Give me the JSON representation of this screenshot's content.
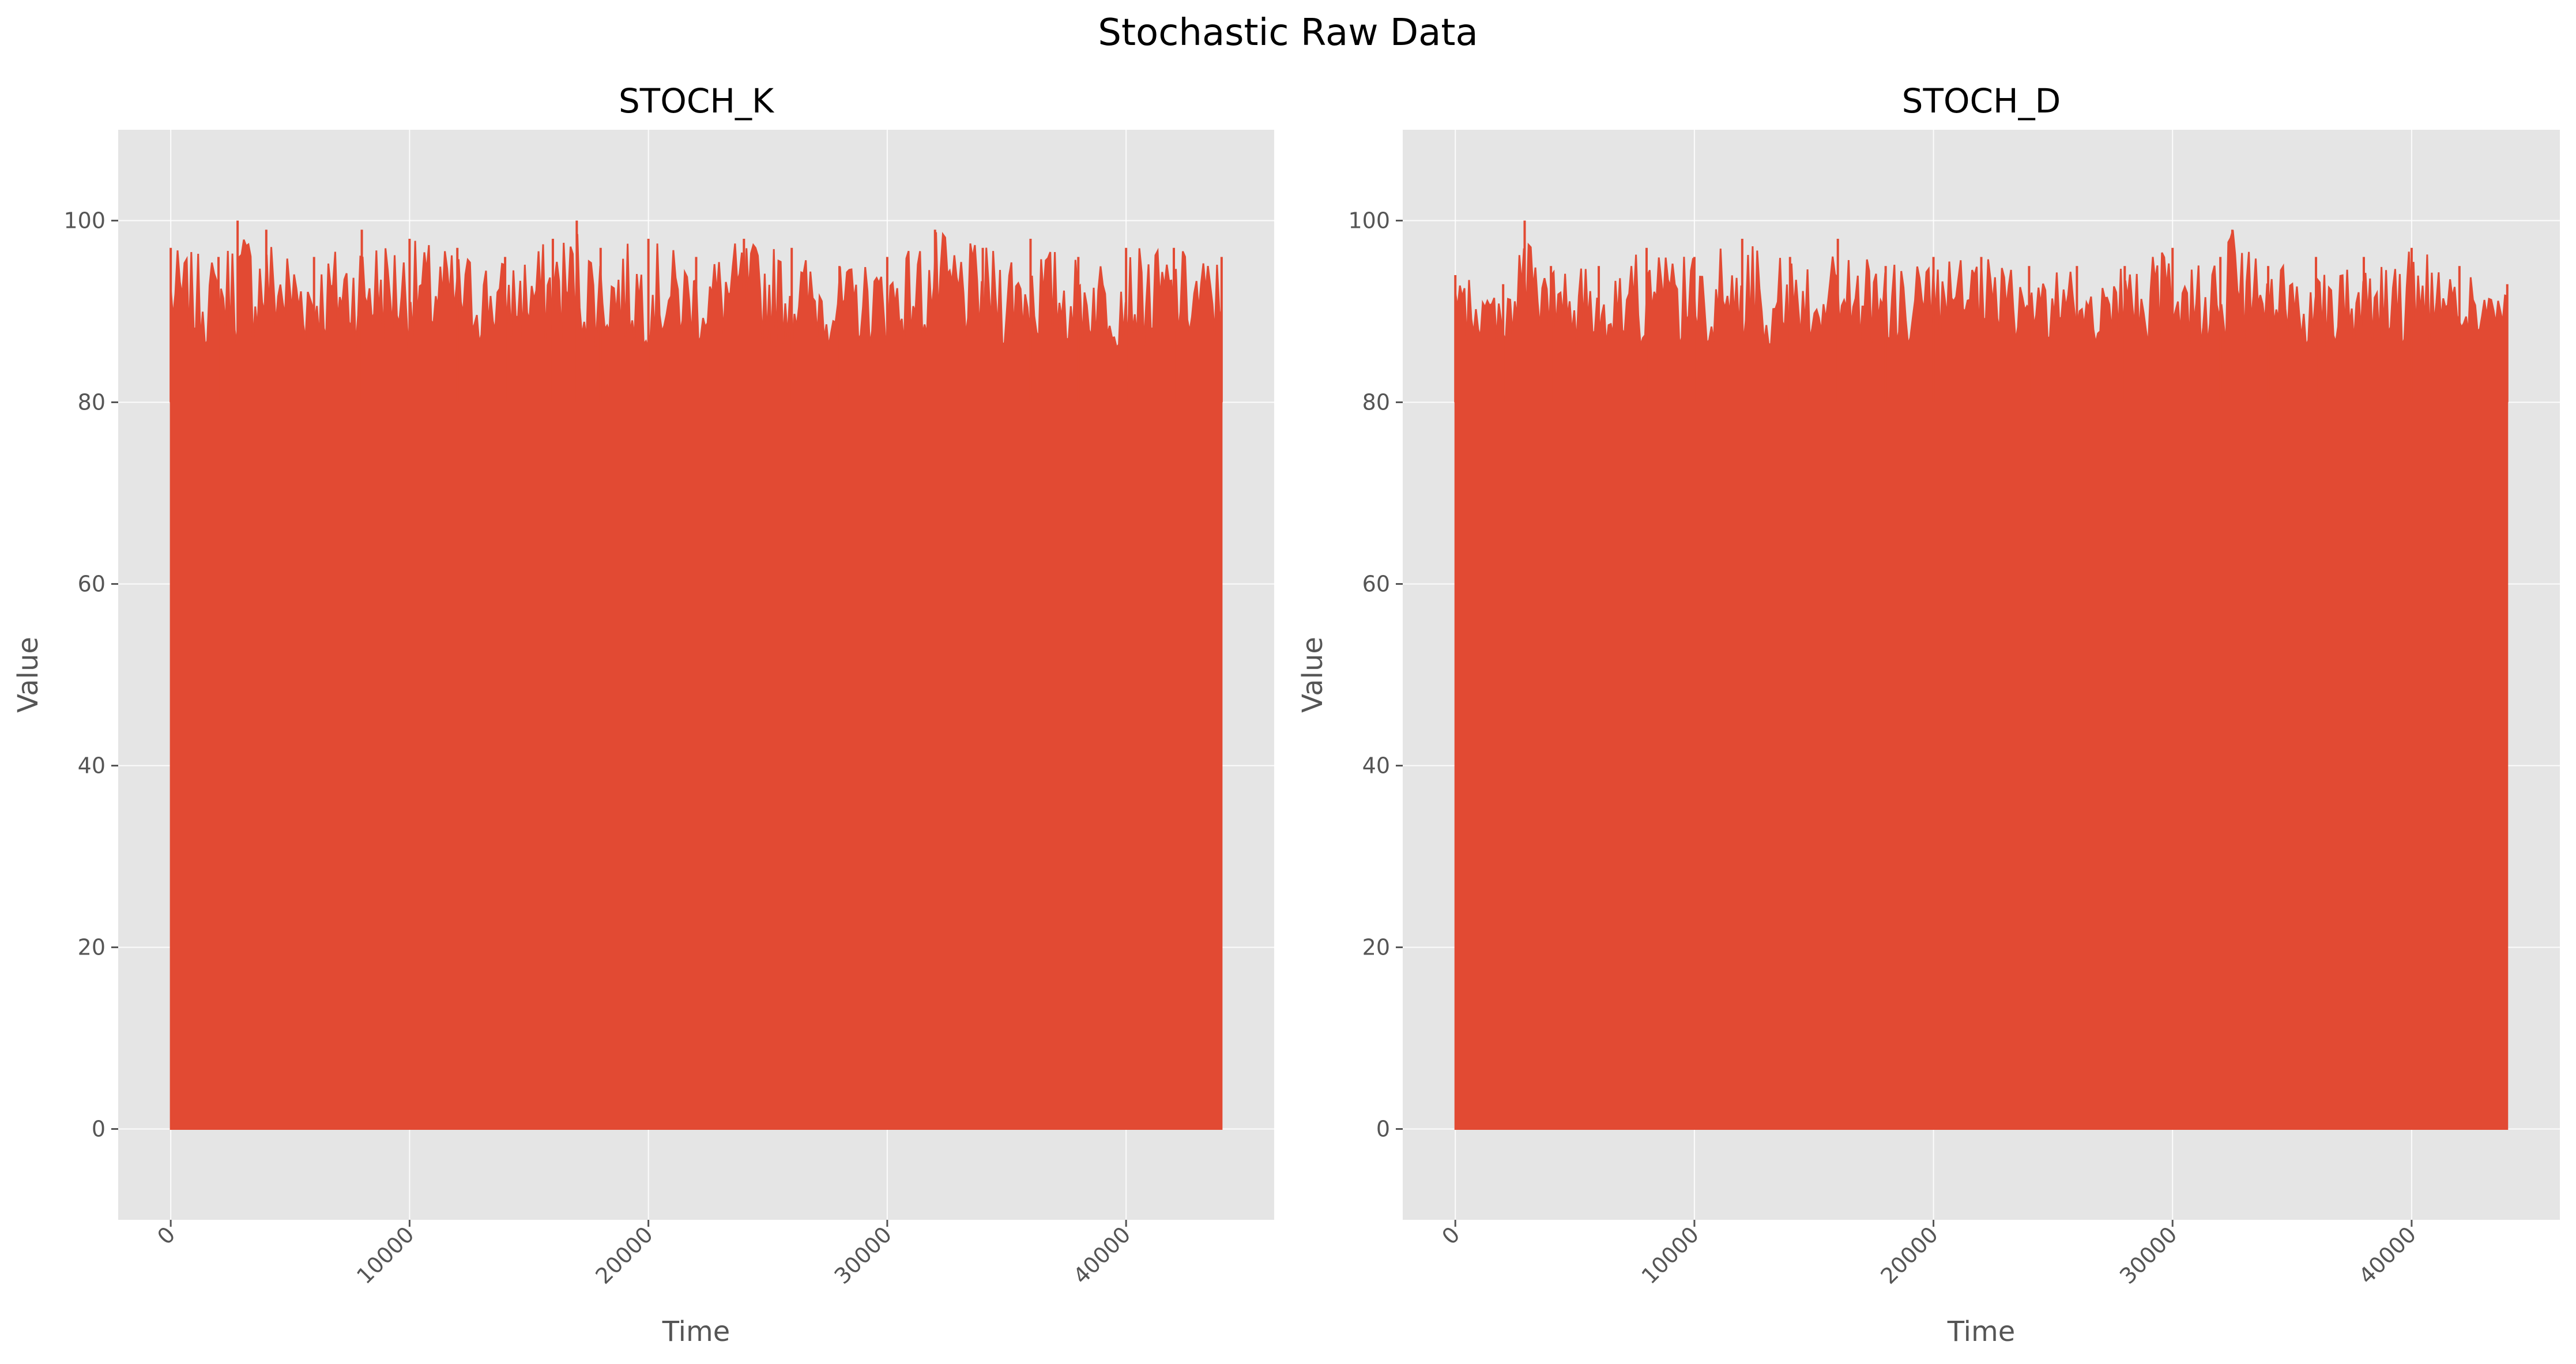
{
  "figure": {
    "title": "Stochastic Raw Data"
  },
  "colors": {
    "background": "#E5E5E5",
    "series": "#E24A33",
    "grid": "#FFFFFF",
    "text": "#555555"
  },
  "chart_data": [
    {
      "type": "line",
      "title": "STOCH_K",
      "xlabel": "Time",
      "ylabel": "Value",
      "xlim": [
        -2200,
        46200
      ],
      "ylim": [
        -10,
        110
      ],
      "xticks": [
        0,
        10000,
        20000,
        30000,
        40000
      ],
      "xtick_labels": [
        "0",
        "10000",
        "20000",
        "30000",
        "40000"
      ],
      "xtick_rotation": 45,
      "yticks": [
        0,
        20,
        40,
        60,
        80,
        100
      ],
      "ytick_labels": [
        "0",
        "20",
        "40",
        "60",
        "80",
        "100"
      ],
      "grid": true,
      "series": [
        {
          "color": "#E24A33",
          "x_range": [
            0,
            44000
          ],
          "y_min": 0,
          "y_max": 100,
          "description_values": "dense oscillation filling 0 to ~90-100 across entire range",
          "x": [
            0,
            2000,
            2800,
            4000,
            6000,
            8000,
            10000,
            12000,
            14000,
            16000,
            17000,
            18000,
            20000,
            22000,
            24000,
            26000,
            28000,
            30000,
            32000,
            34000,
            36000,
            38000,
            40000,
            42000,
            44000
          ],
          "peaks": [
            97,
            96,
            100,
            99,
            96,
            99,
            98,
            97,
            96,
            98,
            100,
            97,
            98,
            96,
            98,
            97,
            95,
            96,
            99,
            97,
            98,
            96,
            97,
            97,
            96
          ]
        }
      ]
    },
    {
      "type": "line",
      "title": "STOCH_D",
      "xlabel": "Time",
      "ylabel": "Value",
      "xlim": [
        -2200,
        46200
      ],
      "ylim": [
        -10,
        110
      ],
      "xticks": [
        0,
        10000,
        20000,
        30000,
        40000
      ],
      "xtick_labels": [
        "0",
        "10000",
        "20000",
        "30000",
        "40000"
      ],
      "xtick_rotation": 45,
      "yticks": [
        0,
        20,
        40,
        60,
        80,
        100
      ],
      "ytick_labels": [
        "0",
        "20",
        "40",
        "60",
        "80",
        "100"
      ],
      "grid": true,
      "series": [
        {
          "color": "#E24A33",
          "x_range": [
            0,
            44000
          ],
          "y_min": 0,
          "y_max": 100,
          "x": [
            0,
            2000,
            2900,
            4000,
            6000,
            8000,
            10000,
            12000,
            14000,
            16000,
            18000,
            20000,
            22000,
            24000,
            26000,
            28000,
            30000,
            32000,
            32500,
            34000,
            36000,
            38000,
            40000,
            42000,
            44000
          ],
          "peaks": [
            94,
            93,
            100,
            95,
            95,
            97,
            96,
            98,
            96,
            98,
            95,
            96,
            96,
            95,
            95,
            95,
            97,
            96,
            99,
            95,
            96,
            96,
            97,
            95,
            93
          ]
        }
      ]
    }
  ]
}
